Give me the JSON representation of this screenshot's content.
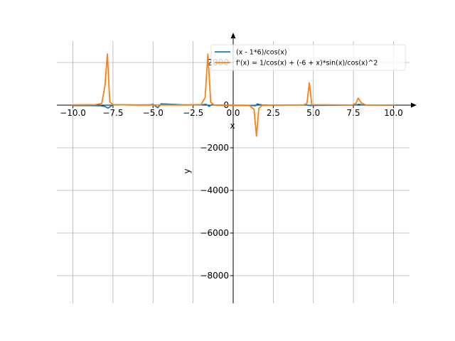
{
  "chart_data": {
    "type": "line",
    "title": "",
    "xlabel": "x",
    "ylabel": "y",
    "xlim": [
      -11.0,
      11.0
    ],
    "ylim": [
      -9300,
      3000
    ],
    "grid": true,
    "legend_position": "top-right",
    "x_ticks": [
      -10.0,
      -7.5,
      -5.0,
      -2.5,
      0.0,
      2.5,
      5.0,
      7.5,
      10.0
    ],
    "x_tick_labels": [
      "−10.0",
      "−7.5",
      "−5.0",
      "−2.5",
      "0.0",
      "2.5",
      "5.0",
      "7.5",
      "10.0"
    ],
    "y_ticks": [
      2000,
      0,
      -2000,
      -4000,
      -6000,
      -8000
    ],
    "y_tick_labels": [
      "2000",
      "0",
      "−2000",
      "−4000",
      "−6000",
      "−8000"
    ],
    "series": [
      {
        "name": "(x - 1*6)/cos(x)",
        "color": "#1f77b4",
        "x": [
          -10,
          -9,
          -8.3,
          -8.0,
          -7.8,
          -7.5,
          -6,
          -5.2,
          -5.0,
          -4.9,
          -4.7,
          -4.5,
          -3,
          -2,
          -1.7,
          -1.5,
          -1.35,
          -1.2,
          0,
          1.0,
          1.4,
          1.5,
          1.65,
          1.8,
          2.5,
          4.6,
          4.8,
          5.0,
          7.6,
          7.85,
          8.1,
          10
        ],
        "y": [
          -19,
          -20,
          -30,
          -60,
          -140,
          20,
          8,
          10,
          40,
          -20,
          -120,
          60,
          10,
          14,
          40,
          -60,
          20,
          8,
          -6,
          -9,
          -30,
          60,
          30,
          8,
          5,
          3,
          -20,
          -10,
          2,
          40,
          4,
          -4
        ]
      },
      {
        "name": "f'(x) = 1/cos(x) + (-6 + x)*sin(x)/cos(x)^2",
        "color": "#ff7f0e",
        "x": [
          -10,
          -8.6,
          -8.2,
          -8.0,
          -7.85,
          -7.7,
          -7.5,
          -6,
          -5.2,
          -5.0,
          -4.7,
          -4.4,
          -3,
          -2.0,
          -1.75,
          -1.58,
          -1.4,
          -1.2,
          0,
          1.0,
          1.3,
          1.45,
          1.6,
          1.8,
          2.5,
          4.4,
          4.6,
          4.75,
          4.9,
          7.4,
          7.65,
          7.8,
          8.0,
          8.3,
          10
        ],
        "y": [
          10,
          20,
          80,
          900,
          2400,
          150,
          20,
          8,
          10,
          4,
          6,
          8,
          6,
          30,
          350,
          2400,
          140,
          10,
          -6,
          -10,
          -200,
          -1450,
          -150,
          -10,
          4,
          10,
          80,
          1050,
          20,
          5,
          80,
          330,
          100,
          5,
          4
        ]
      }
    ]
  }
}
